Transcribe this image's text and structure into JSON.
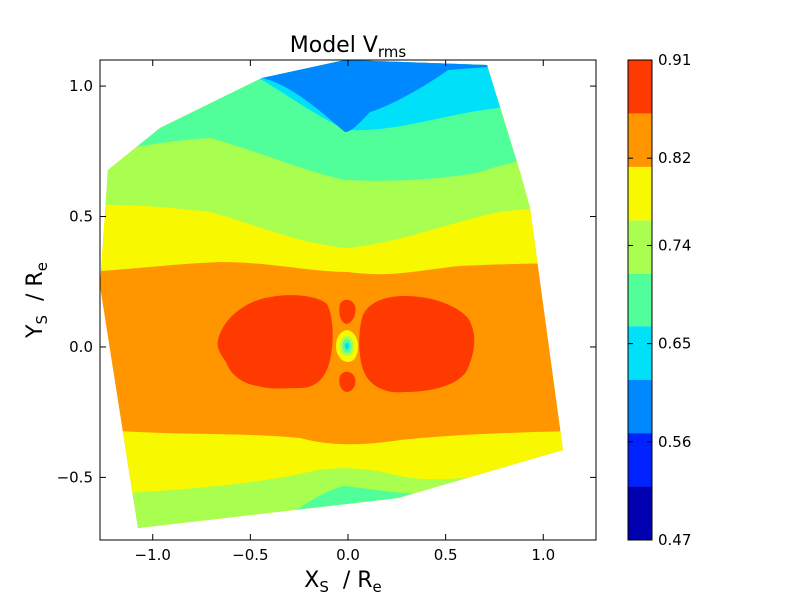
{
  "chart_data": {
    "type": "heatmap",
    "title": {
      "main": "Model V",
      "sub": "rms"
    },
    "xlabel": {
      "main": "X",
      "sub": "S",
      "rest": "  / R",
      "sub2": "e"
    },
    "ylabel": {
      "main": "Y",
      "sub": "S",
      "rest": "  / R",
      "sub2": "e"
    },
    "xlim": [
      -1.27,
      1.27
    ],
    "ylim": [
      -0.74,
      1.1
    ],
    "xticks": [
      {
        "value": -1.0,
        "label": "−1.0"
      },
      {
        "value": -0.5,
        "label": "−0.5"
      },
      {
        "value": 0.0,
        "label": "0.0"
      },
      {
        "value": 0.5,
        "label": "0.5"
      },
      {
        "value": 1.0,
        "label": "1.0"
      }
    ],
    "yticks": [
      {
        "value": -0.5,
        "label": "−0.5"
      },
      {
        "value": 0.0,
        "label": "0.0"
      },
      {
        "value": 0.5,
        "label": "0.5"
      },
      {
        "value": 1.0,
        "label": "1.0"
      }
    ],
    "colorbar": {
      "range": [
        0.47,
        0.91
      ],
      "levels": [
        0.47,
        0.519,
        0.568,
        0.617,
        0.666,
        0.714,
        0.763,
        0.812,
        0.861,
        0.91
      ],
      "colors": [
        "#0000b0",
        "#0022ff",
        "#0088ff",
        "#00e0f8",
        "#50ff9a",
        "#a8ff50",
        "#f8f800",
        "#ff9600",
        "#ff3a00",
        "#b40000"
      ],
      "tick_values": [
        0.47,
        0.56,
        0.65,
        0.74,
        0.82,
        0.91
      ],
      "tick_labels": [
        "0.47",
        "0.56",
        "0.65",
        "0.74",
        "0.82",
        "0.91"
      ]
    },
    "field_bands": [
      {
        "name": "outer-top",
        "color": "#0088ff",
        "value_range": [
          0.568,
          0.617
        ]
      },
      {
        "name": "cyan",
        "color": "#00e0f8",
        "value_range": [
          0.617,
          0.666
        ]
      },
      {
        "name": "green",
        "color": "#50ff9a",
        "value_range": [
          0.666,
          0.714
        ]
      },
      {
        "name": "lime",
        "color": "#a8ff50",
        "value_range": [
          0.714,
          0.763
        ]
      },
      {
        "name": "yellow",
        "color": "#f8f800",
        "value_range": [
          0.763,
          0.812
        ]
      },
      {
        "name": "orange",
        "color": "#ff9600",
        "value_range": [
          0.812,
          0.861
        ]
      },
      {
        "name": "red-orange",
        "color": "#ff3a00",
        "value_range": [
          0.861,
          0.91
        ]
      }
    ]
  }
}
